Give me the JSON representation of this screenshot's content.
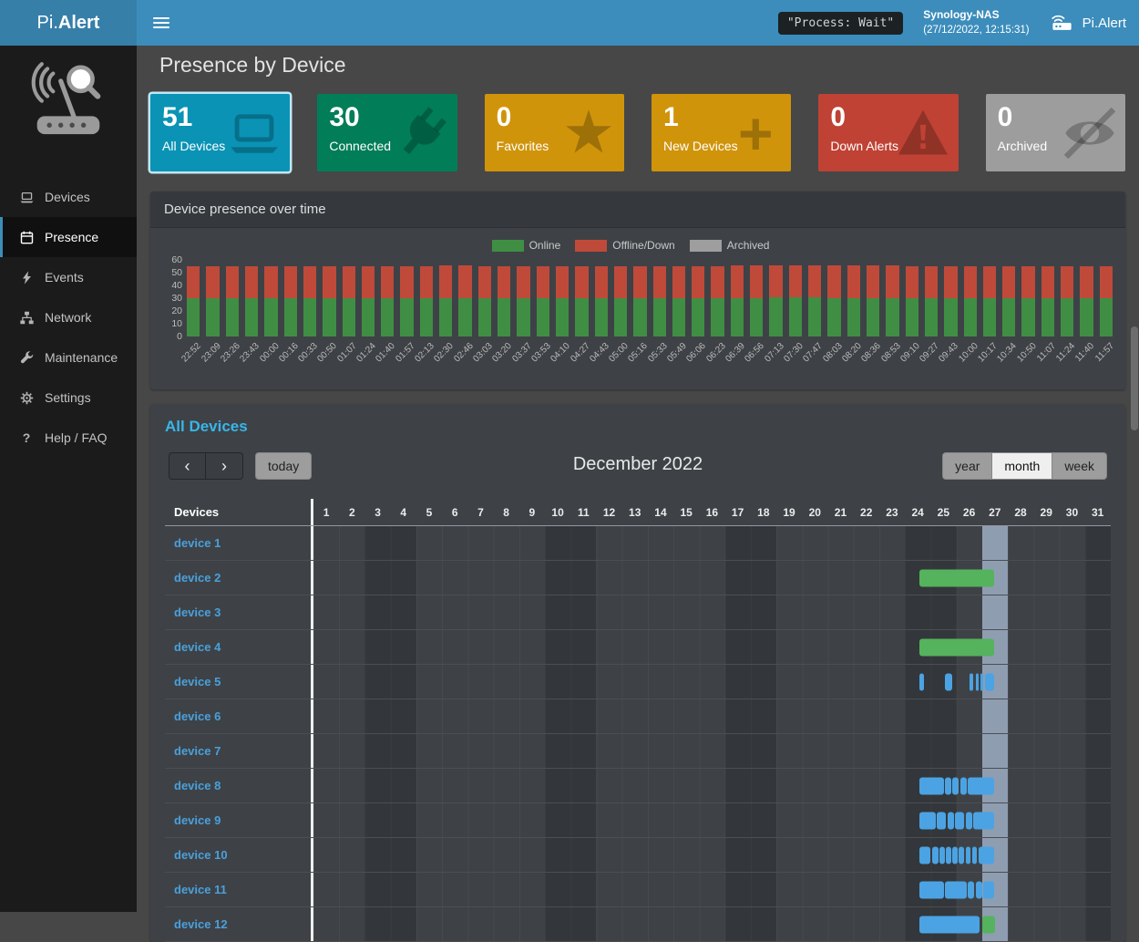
{
  "navbar": {
    "brand_pi": "Pi.",
    "brand_alert": "Alert",
    "process_status": "\"Process: Wait\"",
    "host_name": "Synology-NAS",
    "host_time": "(27/12/2022, 12:15:31)",
    "right_brand": "Pi.Alert"
  },
  "sidebar": {
    "items": [
      {
        "label": "Devices",
        "icon": "laptop-icon",
        "active": false
      },
      {
        "label": "Presence",
        "icon": "calendar-icon",
        "active": true
      },
      {
        "label": "Events",
        "icon": "bolt-icon",
        "active": false
      },
      {
        "label": "Network",
        "icon": "network-icon",
        "active": false
      },
      {
        "label": "Maintenance",
        "icon": "wrench-icon",
        "active": false
      },
      {
        "label": "Settings",
        "icon": "gear-icon",
        "active": false
      },
      {
        "label": "Help / FAQ",
        "icon": "question-icon",
        "active": false
      }
    ]
  },
  "page": {
    "title": "Presence by Device"
  },
  "summary_boxes": [
    {
      "value": "51",
      "label": "All Devices",
      "color": "#0a93b5",
      "icon": "laptop-icon",
      "selected": true
    },
    {
      "value": "30",
      "label": "Connected",
      "color": "#017d58",
      "icon": "plug-icon",
      "selected": false
    },
    {
      "value": "0",
      "label": "Favorites",
      "color": "#d0940b",
      "icon": "star-icon",
      "selected": false
    },
    {
      "value": "1",
      "label": "New Devices",
      "color": "#d0940b",
      "icon": "plus-icon",
      "selected": false
    },
    {
      "value": "0",
      "label": "Down Alerts",
      "color": "#bf4234",
      "icon": "warning-icon",
      "selected": false
    },
    {
      "value": "0",
      "label": "Archived",
      "color": "#9d9d9d",
      "icon": "eye-slash-icon",
      "selected": false
    }
  ],
  "chart_data": {
    "type": "bar",
    "stacked": true,
    "title": "Device presence over time",
    "legend_position": "top",
    "ylim": [
      0,
      60
    ],
    "yticks": [
      0,
      10,
      20,
      30,
      40,
      50,
      60
    ],
    "categories": [
      "22:52",
      "23:09",
      "23:26",
      "23:43",
      "00:00",
      "00:16",
      "00:33",
      "00:50",
      "01:07",
      "01:24",
      "01:40",
      "01:57",
      "02:13",
      "02:30",
      "02:46",
      "03:03",
      "03:20",
      "03:37",
      "03:53",
      "04:10",
      "04:27",
      "04:43",
      "05:00",
      "05:16",
      "05:33",
      "05:49",
      "06:06",
      "06:23",
      "06:39",
      "06:56",
      "07:13",
      "07:30",
      "07:47",
      "08:03",
      "08:20",
      "08:36",
      "08:53",
      "09:10",
      "09:27",
      "09:43",
      "10:00",
      "10:17",
      "10:34",
      "10:50",
      "11:07",
      "11:24",
      "11:40",
      "11:57"
    ],
    "series": [
      {
        "name": "Online",
        "color": "#3f8e44",
        "values": [
          30,
          30,
          30,
          30,
          30,
          30,
          30,
          30,
          30,
          30,
          30,
          30,
          30,
          30,
          30,
          30,
          30,
          30,
          30,
          30,
          30,
          30,
          30,
          30,
          30,
          30,
          30,
          30,
          30,
          30,
          31,
          31,
          31,
          30,
          30,
          30,
          30,
          30,
          30,
          30,
          30,
          30,
          30,
          30,
          30,
          30,
          30,
          30
        ]
      },
      {
        "name": "Offline/Down",
        "color": "#bf4a3a",
        "values": [
          25,
          25,
          25,
          25,
          25,
          25,
          25,
          25,
          25,
          25,
          25,
          25,
          25,
          26,
          26,
          25,
          25,
          25,
          25,
          25,
          25,
          25,
          25,
          25,
          25,
          25,
          25,
          25,
          26,
          26,
          25,
          25,
          25,
          26,
          26,
          26,
          26,
          25,
          25,
          25,
          25,
          25,
          25,
          25,
          25,
          25,
          25,
          25
        ]
      },
      {
        "name": "Archived",
        "color": "#9e9e9e",
        "values": [
          0,
          0,
          0,
          0,
          0,
          0,
          0,
          0,
          0,
          0,
          0,
          0,
          0,
          0,
          0,
          0,
          0,
          0,
          0,
          0,
          0,
          0,
          0,
          0,
          0,
          0,
          0,
          0,
          0,
          0,
          0,
          0,
          0,
          0,
          0,
          0,
          0,
          0,
          0,
          0,
          0,
          0,
          0,
          0,
          0,
          0,
          0,
          0
        ]
      }
    ]
  },
  "calendar": {
    "title": "All Devices",
    "toolbar": {
      "prev_icon": "‹",
      "next_icon": "›",
      "today_label": "today",
      "title": "December 2022",
      "views": [
        {
          "label": "year",
          "active": false
        },
        {
          "label": "month",
          "active": true
        },
        {
          "label": "week",
          "active": false
        }
      ]
    },
    "colors": {
      "online": "#55b25d",
      "session": "#4ba3e3"
    },
    "table": {
      "device_header": "Devices",
      "days": 31,
      "weekend_days": [
        3,
        4,
        10,
        11,
        17,
        18,
        24,
        25,
        31
      ],
      "today_day": 27,
      "devices": [
        {
          "name": "device 1",
          "segments": []
        },
        {
          "name": "device 2",
          "segments": [
            {
              "type": "online",
              "from": 24.55,
              "to": 27.45
            }
          ]
        },
        {
          "name": "device 3",
          "segments": []
        },
        {
          "name": "device 4",
          "segments": [
            {
              "type": "online",
              "from": 24.55,
              "to": 27.45
            }
          ]
        },
        {
          "name": "device 5",
          "segments": [
            {
              "type": "session",
              "from": 24.56,
              "to": 24.74
            },
            {
              "type": "session",
              "from": 25.54,
              "to": 25.82
            },
            {
              "type": "session",
              "from": 26.52,
              "to": 26.66
            },
            {
              "type": "session",
              "from": 26.77,
              "to": 26.87
            },
            {
              "type": "session",
              "from": 26.94,
              "to": 27.05
            },
            {
              "type": "session",
              "from": 27.12,
              "to": 27.47
            }
          ]
        },
        {
          "name": "device 6",
          "segments": []
        },
        {
          "name": "device 7",
          "segments": []
        },
        {
          "name": "device 8",
          "segments": [
            {
              "type": "session",
              "from": 24.56,
              "to": 25.5
            },
            {
              "type": "session",
              "from": 25.54,
              "to": 25.8
            },
            {
              "type": "session",
              "from": 25.85,
              "to": 26.1
            },
            {
              "type": "session",
              "from": 26.15,
              "to": 26.4
            },
            {
              "type": "session",
              "from": 26.45,
              "to": 27.48
            }
          ]
        },
        {
          "name": "device 9",
          "segments": [
            {
              "type": "session",
              "from": 24.56,
              "to": 25.2
            },
            {
              "type": "session",
              "from": 25.25,
              "to": 25.6
            },
            {
              "type": "session",
              "from": 25.65,
              "to": 25.9
            },
            {
              "type": "session",
              "from": 25.95,
              "to": 26.3
            },
            {
              "type": "session",
              "from": 26.35,
              "to": 26.6
            },
            {
              "type": "session",
              "from": 26.65,
              "to": 27.48
            }
          ]
        },
        {
          "name": "device 10",
          "segments": [
            {
              "type": "session",
              "from": 24.56,
              "to": 25.0
            },
            {
              "type": "session",
              "from": 25.05,
              "to": 25.3
            },
            {
              "type": "session",
              "from": 25.35,
              "to": 25.55
            },
            {
              "type": "session",
              "from": 25.6,
              "to": 25.8
            },
            {
              "type": "session",
              "from": 25.85,
              "to": 26.05
            },
            {
              "type": "session",
              "from": 26.1,
              "to": 26.3
            },
            {
              "type": "session",
              "from": 26.35,
              "to": 26.55
            },
            {
              "type": "session",
              "from": 26.6,
              "to": 26.8
            },
            {
              "type": "session",
              "from": 26.85,
              "to": 27.48
            }
          ]
        },
        {
          "name": "device 11",
          "segments": [
            {
              "type": "session",
              "from": 24.56,
              "to": 25.5
            },
            {
              "type": "session",
              "from": 25.55,
              "to": 26.4
            },
            {
              "type": "session",
              "from": 26.45,
              "to": 26.7
            },
            {
              "type": "session",
              "from": 26.75,
              "to": 27.0
            },
            {
              "type": "session",
              "from": 27.05,
              "to": 27.48
            }
          ]
        },
        {
          "name": "device 12",
          "segments": [
            {
              "type": "session",
              "from": 24.56,
              "to": 26.9
            },
            {
              "type": "online",
              "from": 27.0,
              "to": 27.5
            }
          ]
        }
      ]
    }
  }
}
